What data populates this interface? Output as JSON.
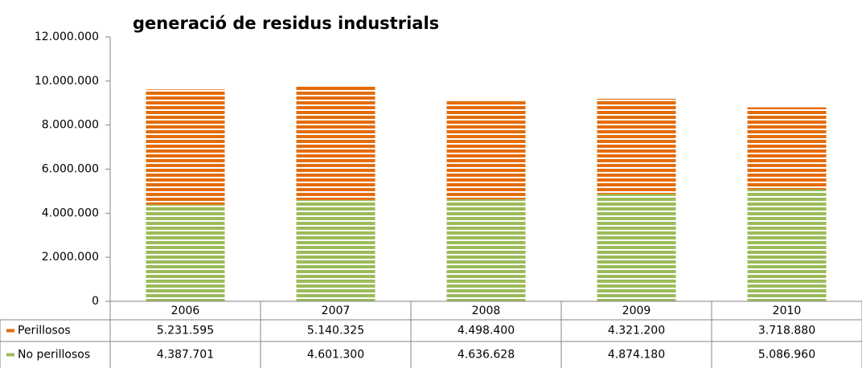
{
  "chart_data": {
    "type": "stacked_bar",
    "title": "generació de residus industrials",
    "categories": [
      "2006",
      "2007",
      "2008",
      "2009",
      "2010"
    ],
    "series": [
      {
        "name": "No perillosos",
        "color": "#9bbb59",
        "values": [
          4387701,
          4601300,
          4636628,
          4874180,
          5086960
        ],
        "value_labels": [
          "4.387.701",
          "4.601.300",
          "4.636.628",
          "4.874.180",
          "5.086.960"
        ]
      },
      {
        "name": "Perillosos",
        "color": "#e46c0a",
        "values": [
          5231595,
          5140325,
          4498400,
          4321200,
          3718880
        ],
        "value_labels": [
          "5.231.595",
          "5.140.325",
          "4.498.400",
          "4.321.200",
          "3.718.880"
        ]
      }
    ],
    "ylim": [
      0,
      12000000
    ],
    "yticks": [
      0,
      {
        "value": 2000000,
        "label": "2.000.000"
      },
      {
        "value": 4000000,
        "label": "4.000.000"
      },
      {
        "value": 6000000,
        "label": "6.000.000"
      },
      {
        "value": 8000000,
        "label": "8.000.000"
      },
      {
        "value": 10000000,
        "label": "10.000.000"
      },
      {
        "value": 12000000,
        "label": "12.000.000"
      }
    ],
    "grid": false,
    "legend": "data-table"
  }
}
